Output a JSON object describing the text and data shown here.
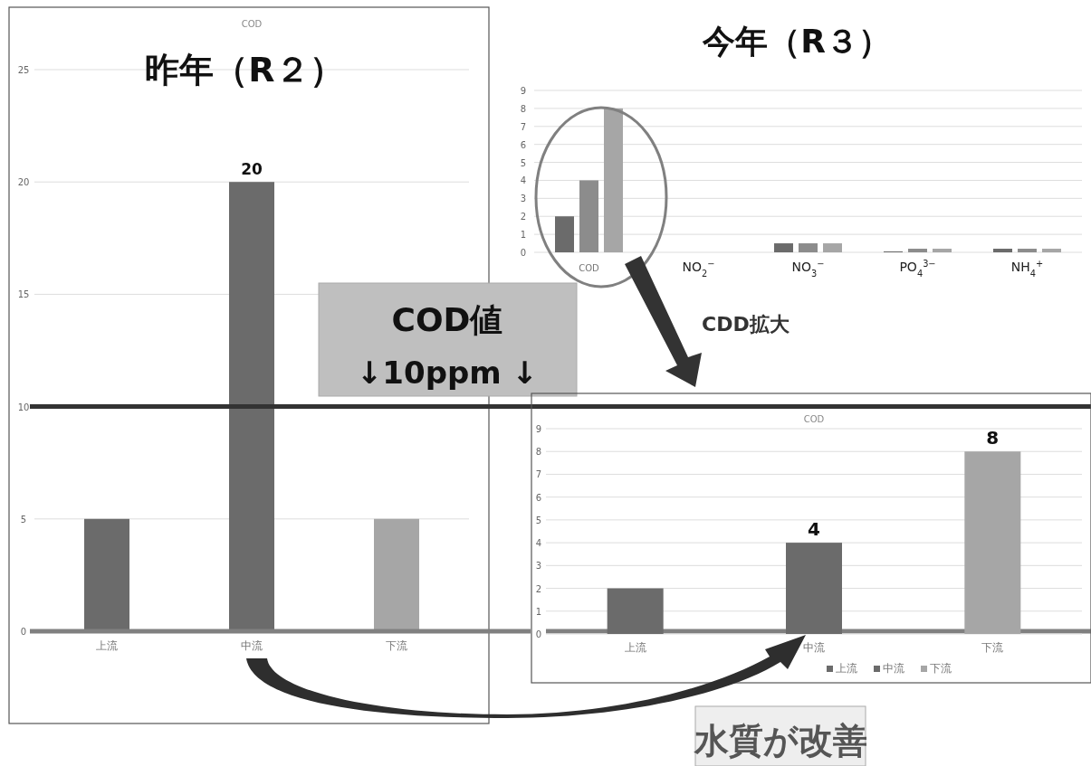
{
  "chart_data": [
    {
      "type": "bar",
      "title": "COD",
      "subtitle": "昨年（R２）",
      "categories": [
        "上流",
        "中流",
        "下流"
      ],
      "values": [
        5,
        20,
        5
      ],
      "colors": [
        "#6b6b6b",
        "#6b6b6b",
        "#a6a6a6"
      ],
      "value_labels": [
        null,
        "20",
        null
      ],
      "ylim": [
        0,
        25
      ],
      "yticks": [
        0,
        5,
        10,
        15,
        20,
        25
      ],
      "grid": "y",
      "ref_lines": [
        {
          "axis": "y",
          "value": 10,
          "color": "#333333"
        }
      ],
      "annotations": [
        "COD値",
        "↓10ppm ↓",
        "水質が改善"
      ]
    },
    {
      "type": "bar",
      "title": "今年（R３）",
      "categories": [
        "COD",
        "NO$_{2}$$^{−}$",
        "NO$_{3}$$^{−}$",
        "PO$_{4}$$^{3−}$",
        "NH$_{4}$$^{+}$"
      ],
      "ylim": [
        0,
        9
      ],
      "yticks": [
        0,
        1,
        2,
        3,
        4,
        5,
        6,
        7,
        8,
        9
      ],
      "grid": "y",
      "series": [
        {
          "color": "#6b6b6b",
          "values": [
            2,
            0,
            0.5,
            0.05,
            0.2
          ]
        },
        {
          "color": "#8c8c8c",
          "values": [
            4,
            0,
            0.5,
            0.2,
            0.2
          ]
        },
        {
          "color": "#a6a6a6",
          "values": [
            8,
            0,
            0.5,
            0.2,
            0.2
          ]
        }
      ]
    },
    {
      "type": "bar",
      "title": "COD",
      "categories": [
        "上流",
        "中流",
        "下流"
      ],
      "ylim": [
        0,
        9
      ],
      "yticks": [
        0,
        1,
        2,
        3,
        4,
        5,
        6,
        7,
        8,
        9
      ],
      "grid": "y",
      "legend": "bottom",
      "annotations": [
        "CDD拡大"
      ],
      "series": [
        {
          "name": "上流",
          "color": "#6b6b6b",
          "values": [
            2,
            null,
            null
          ],
          "value_labels": [
            null,
            null,
            null
          ]
        },
        {
          "name": "中流",
          "color": "#6b6b6b",
          "values": [
            null,
            4,
            null
          ],
          "value_labels": [
            null,
            "4",
            null
          ]
        },
        {
          "name": "下流",
          "color": "#a6a6a6",
          "values": [
            null,
            null,
            8
          ],
          "value_labels": [
            null,
            null,
            "8"
          ]
        }
      ]
    }
  ]
}
